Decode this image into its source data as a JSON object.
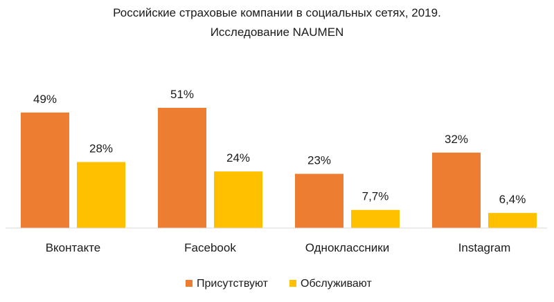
{
  "chart_data": {
    "type": "bar",
    "title": "Российские страховые компании в социальных сетях, 2019.",
    "subtitle": "Исследование NAUMEN",
    "categories": [
      "Вконтакте",
      "Facebook",
      "Одноклассники",
      "Instagram"
    ],
    "series": [
      {
        "name": "Присутствуют",
        "color": "#ED7D31",
        "values": [
          49,
          51,
          23,
          32
        ],
        "labels": [
          "49%",
          "51%",
          "23%",
          "32%"
        ]
      },
      {
        "name": "Обслуживают",
        "color": "#FFC000",
        "values": [
          28,
          24,
          7.7,
          6.4
        ],
        "labels": [
          "28%",
          "24%",
          "7,7%",
          "6,4%"
        ]
      }
    ],
    "xlabel": "",
    "ylabel": "",
    "ylim": [
      0,
      60
    ],
    "grid": false,
    "legend": "bottom"
  }
}
